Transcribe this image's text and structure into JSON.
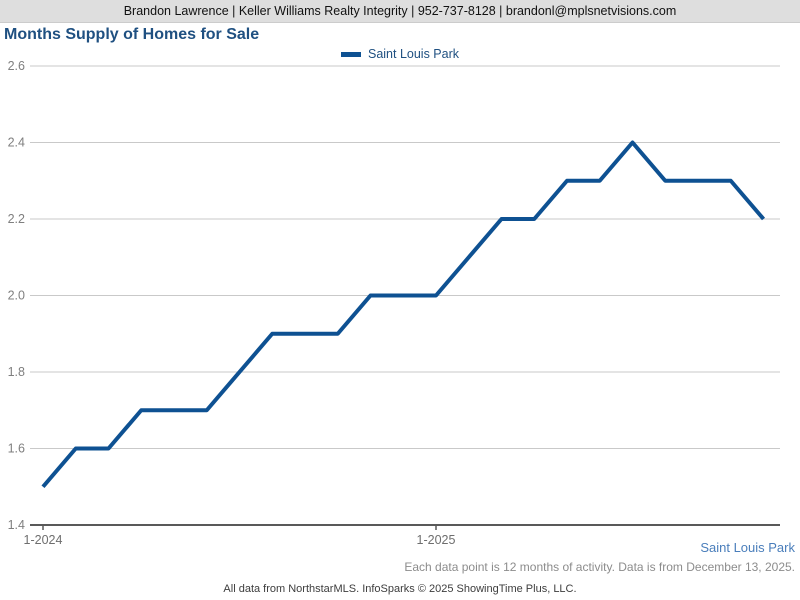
{
  "header": {
    "contact_line": "Brandon Lawrence | Keller Williams Realty Integrity | 952-737-8128 | brandonl@mplsnetvisions.com"
  },
  "title": "Months Supply of Homes for Sale",
  "legend": {
    "label": "Saint Louis Park"
  },
  "footer": {
    "series_label": "Saint Louis Park",
    "note": "Each data point is 12 months of activity. Data is from December 13, 2025.",
    "attribution": "All data from NorthstarMLS. InfoSparks © 2025 ShowingTime Plus, LLC."
  },
  "colors": {
    "line": "#0e5192",
    "title_text": "#1f5081",
    "legend_text": "#1f5081",
    "grid": "#c9c9c9",
    "axis": "#595959",
    "y_tick_text": "#7f7f7f",
    "x_tick_text": "#6e6e6e",
    "series_label_text": "#4a7ebb",
    "header_bg": "#dedede"
  },
  "chart_data": {
    "type": "line",
    "title": "Months Supply of Homes for Sale",
    "x": [
      "1-2024",
      "2-2024",
      "3-2024",
      "4-2024",
      "5-2024",
      "6-2024",
      "7-2024",
      "8-2024",
      "9-2024",
      "10-2024",
      "11-2024",
      "12-2024",
      "1-2025",
      "2-2025",
      "3-2025",
      "4-2025",
      "5-2025",
      "6-2025",
      "7-2025",
      "8-2025",
      "9-2025",
      "10-2025",
      "11-2025"
    ],
    "series": [
      {
        "name": "Saint Louis Park",
        "values": [
          1.5,
          1.6,
          1.6,
          1.7,
          1.7,
          1.7,
          1.8,
          1.9,
          1.9,
          1.9,
          2.0,
          2.0,
          2.0,
          2.1,
          2.2,
          2.2,
          2.3,
          2.3,
          2.4,
          2.3,
          2.3,
          2.3,
          2.2
        ]
      }
    ],
    "xlabel": "",
    "ylabel": "",
    "ylim": [
      1.4,
      2.6
    ],
    "y_ticks": [
      1.4,
      1.6,
      1.8,
      2.0,
      2.2,
      2.4,
      2.6
    ],
    "x_tick_labels": [
      "1-2024",
      "1-2025"
    ],
    "grid": "horizontal",
    "legend_position": "top-center"
  }
}
